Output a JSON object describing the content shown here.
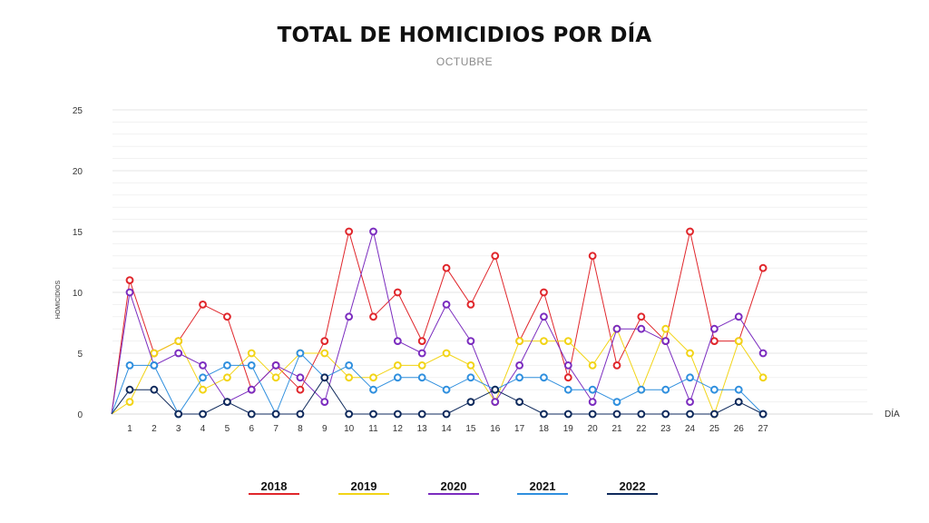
{
  "chart_data": {
    "type": "line",
    "title": "TOTAL DE HOMICIDIOS POR DÍA",
    "subtitle": "OCTUBRE",
    "xlabel": "DÍA",
    "ylabel": "HOMICIDIOS",
    "categories": [
      "1",
      "2",
      "3",
      "4",
      "5",
      "6",
      "7",
      "8",
      "9",
      "10",
      "11",
      "12",
      "13",
      "14",
      "15",
      "16",
      "17",
      "18",
      "19",
      "20",
      "21",
      "22",
      "23",
      "24",
      "25",
      "26",
      "27"
    ],
    "ylim": [
      0,
      25
    ],
    "yticks": [
      "0",
      "5",
      "10",
      "15",
      "20",
      "25"
    ],
    "grid": true,
    "legend_position": "bottom",
    "series": [
      {
        "name": "2018",
        "color": "#e0262b",
        "values": [
          11,
          5,
          6,
          9,
          8,
          2,
          4,
          2,
          6,
          15,
          8,
          10,
          6,
          12,
          9,
          13,
          6,
          10,
          3,
          13,
          4,
          8,
          6,
          15,
          6,
          6,
          12
        ]
      },
      {
        "name": "2019",
        "color": "#f2d416",
        "values": [
          1,
          5,
          6,
          2,
          3,
          5,
          3,
          5,
          5,
          3,
          3,
          4,
          4,
          5,
          4,
          1,
          6,
          6,
          6,
          4,
          7,
          2,
          7,
          5,
          0,
          6,
          3
        ]
      },
      {
        "name": "2020",
        "color": "#7b2cbf",
        "values": [
          10,
          4,
          5,
          4,
          1,
          2,
          4,
          3,
          1,
          8,
          15,
          6,
          5,
          9,
          6,
          1,
          4,
          8,
          4,
          1,
          7,
          7,
          6,
          1,
          7,
          8,
          5
        ]
      },
      {
        "name": "2021",
        "color": "#2f8fde",
        "values": [
          4,
          4,
          0,
          3,
          4,
          4,
          0,
          5,
          3,
          4,
          2,
          3,
          3,
          2,
          3,
          2,
          3,
          3,
          2,
          2,
          1,
          2,
          2,
          3,
          2,
          2,
          0
        ]
      },
      {
        "name": "2022",
        "color": "#0f2a5c",
        "values": [
          2,
          2,
          0,
          0,
          1,
          0,
          0,
          0,
          3,
          0,
          0,
          0,
          0,
          0,
          1,
          2,
          1,
          0,
          0,
          0,
          0,
          0,
          0,
          0,
          0,
          1,
          0
        ]
      }
    ]
  }
}
